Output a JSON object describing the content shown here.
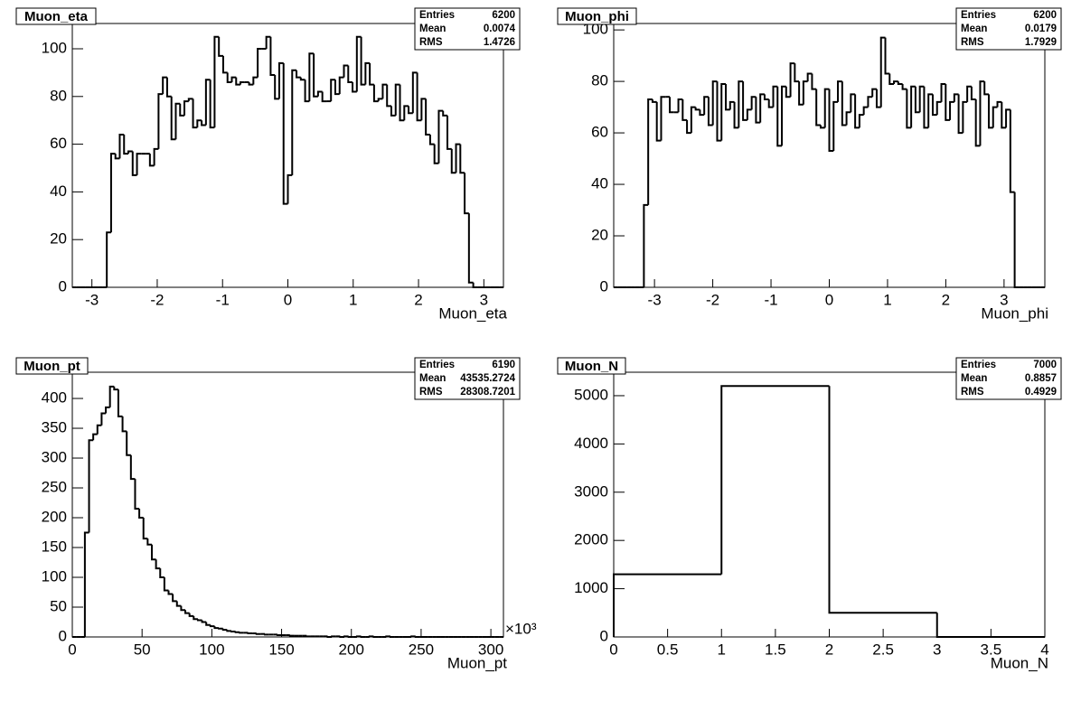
{
  "chart_data": [
    {
      "type": "histogram",
      "title": "Muon_eta",
      "x_label": "Muon_eta",
      "color": "#000000",
      "stats": [
        {
          "label": "Entries",
          "value": 6200
        },
        {
          "label": "Mean",
          "value": 0.0074
        },
        {
          "label": "RMS",
          "value": 1.4726
        }
      ],
      "bins": [
        -3.3,
        -3.234,
        -3.168,
        -3.102,
        -3.036,
        -2.97,
        -2.904,
        -2.838,
        -2.772,
        -2.706,
        -2.64,
        -2.574,
        -2.508,
        -2.442,
        -2.376,
        -2.31,
        -2.244,
        -2.178,
        -2.112,
        -2.046,
        -1.98,
        -1.914,
        -1.848,
        -1.782,
        -1.716,
        -1.65,
        -1.584,
        -1.518,
        -1.452,
        -1.386,
        -1.32,
        -1.254,
        -1.188,
        -1.122,
        -1.056,
        -0.99,
        -0.924,
        -0.858,
        -0.792,
        -0.726,
        -0.66,
        -0.594,
        -0.528,
        -0.462,
        -0.396,
        -0.33,
        -0.264,
        -0.198,
        -0.132,
        -0.066,
        0,
        0.066,
        0.132,
        0.198,
        0.264,
        0.33,
        0.396,
        0.462,
        0.528,
        0.594,
        0.66,
        0.726,
        0.792,
        0.858,
        0.924,
        0.99,
        1.056,
        1.122,
        1.188,
        1.254,
        1.32,
        1.386,
        1.452,
        1.518,
        1.584,
        1.65,
        1.716,
        1.782,
        1.848,
        1.914,
        1.98,
        2.046,
        2.112,
        2.178,
        2.244,
        2.31,
        2.376,
        2.442,
        2.508,
        2.574,
        2.64,
        2.706,
        2.772,
        2.838,
        2.904,
        2.97,
        3.036,
        3.102,
        3.168,
        3.234,
        3.3
      ],
      "values": [
        0,
        0,
        0,
        0,
        0,
        0,
        0,
        0,
        23,
        56,
        54,
        64,
        56,
        57,
        47,
        56,
        56,
        56,
        51,
        58,
        81,
        88,
        80,
        62,
        77,
        72,
        78,
        79,
        67,
        70,
        68,
        87,
        67,
        105,
        97,
        90,
        86,
        88,
        85,
        86,
        86,
        85,
        88,
        100,
        100,
        105,
        89,
        79,
        94,
        35,
        47,
        91,
        88,
        87,
        78,
        98,
        80,
        82,
        78,
        78,
        87,
        81,
        88,
        93,
        86,
        82,
        105,
        85,
        94,
        85,
        78,
        79,
        85,
        76,
        72,
        85,
        70,
        76,
        73,
        90,
        70,
        79,
        64,
        60,
        52,
        74,
        72,
        58,
        48,
        60,
        48,
        31,
        2,
        0,
        0,
        0,
        0,
        0,
        0,
        0
      ],
      "xlim": [
        -3.3,
        3.3
      ],
      "ylim": [
        0,
        110.6
      ],
      "xticks": [
        -3,
        -2,
        -1,
        0,
        1,
        2,
        3
      ],
      "yticks": [
        0,
        20,
        40,
        60,
        80,
        100
      ]
    },
    {
      "type": "histogram",
      "title": "Muon_phi",
      "x_label": "Muon_phi",
      "color": "#000000",
      "stats": [
        {
          "label": "Entries",
          "value": 6200
        },
        {
          "label": "Mean",
          "value": 0.0179
        },
        {
          "label": "RMS",
          "value": 1.7929
        }
      ],
      "bins": [
        -3.7,
        -3.626,
        -3.552,
        -3.478,
        -3.404,
        -3.33,
        -3.256,
        -3.182,
        -3.108,
        -3.034,
        -2.96,
        -2.886,
        -2.812,
        -2.738,
        -2.664,
        -2.59,
        -2.516,
        -2.442,
        -2.368,
        -2.294,
        -2.22,
        -2.146,
        -2.072,
        -1.998,
        -1.924,
        -1.85,
        -1.776,
        -1.702,
        -1.628,
        -1.554,
        -1.48,
        -1.406,
        -1.332,
        -1.258,
        -1.184,
        -1.11,
        -1.036,
        -0.962,
        -0.888,
        -0.814,
        -0.74,
        -0.666,
        -0.592,
        -0.518,
        -0.444,
        -0.37,
        -0.296,
        -0.222,
        -0.148,
        -0.074,
        0,
        0.074,
        0.148,
        0.222,
        0.296,
        0.37,
        0.444,
        0.518,
        0.592,
        0.666,
        0.74,
        0.814,
        0.888,
        0.962,
        1.036,
        1.11,
        1.184,
        1.258,
        1.332,
        1.406,
        1.48,
        1.554,
        1.628,
        1.702,
        1.776,
        1.85,
        1.924,
        1.998,
        2.072,
        2.146,
        2.22,
        2.294,
        2.368,
        2.442,
        2.516,
        2.59,
        2.664,
        2.738,
        2.812,
        2.886,
        2.96,
        3.034,
        3.108,
        3.182,
        3.256,
        3.33,
        3.404,
        3.478,
        3.552,
        3.626,
        3.7
      ],
      "values": [
        0,
        0,
        0,
        0,
        0,
        0,
        0,
        32,
        73,
        72,
        57,
        74,
        74,
        68,
        68,
        73,
        65,
        60,
        70,
        69,
        67,
        74,
        63,
        80,
        57,
        79,
        69,
        72,
        62,
        80,
        65,
        69,
        74,
        64,
        75,
        73,
        70,
        78,
        55,
        78,
        74,
        87,
        80,
        71,
        80,
        83,
        77,
        63,
        62,
        77,
        53,
        72,
        80,
        63,
        68,
        75,
        62,
        67,
        70,
        74,
        77,
        70,
        97,
        83,
        79,
        80,
        79,
        77,
        62,
        78,
        68,
        78,
        62,
        75,
        67,
        72,
        79,
        65,
        72,
        75,
        60,
        72,
        78,
        73,
        55,
        80,
        75,
        62,
        70,
        72,
        62,
        69,
        37,
        0,
        0,
        0,
        0,
        0,
        0,
        0
      ],
      "xlim": [
        -3.7,
        3.7
      ],
      "ylim": [
        0,
        102.5
      ],
      "xticks": [
        -3,
        -2,
        -1,
        0,
        1,
        2,
        3
      ],
      "yticks": [
        0,
        20,
        40,
        60,
        80,
        100
      ]
    },
    {
      "type": "histogram",
      "title": "Muon_pt",
      "x_label": "Muon_pt",
      "x_exponent_label": "×10³",
      "color": "#000000",
      "stats": [
        {
          "label": "Entries",
          "value": 6190
        },
        {
          "label": "Mean",
          "value": 43535.2724
        },
        {
          "label": "RMS",
          "value": 28308.7201
        }
      ],
      "bins": [
        0,
        3000,
        6000,
        9000,
        12000,
        15000,
        18000,
        21000,
        24000,
        27000,
        30000,
        33000,
        36000,
        39000,
        42000,
        45000,
        48000,
        51000,
        54000,
        57000,
        60000,
        63000,
        66000,
        69000,
        72000,
        75000,
        78000,
        81000,
        84000,
        87000,
        90000,
        93000,
        96000,
        99000,
        102000,
        105000,
        108000,
        111000,
        114000,
        117000,
        120000,
        123000,
        126000,
        129000,
        132000,
        135000,
        138000,
        141000,
        144000,
        147000,
        150000,
        153000,
        156000,
        159000,
        162000,
        165000,
        168000,
        171000,
        174000,
        177000,
        180000,
        183000,
        186000,
        189000,
        192000,
        195000,
        198000,
        201000,
        204000,
        207000,
        210000,
        213000,
        216000,
        219000,
        222000,
        225000,
        228000,
        231000,
        234000,
        237000,
        240000,
        243000,
        246000,
        249000,
        252000,
        255000,
        258000,
        261000,
        264000,
        267000,
        270000,
        273000,
        276000,
        279000,
        282000,
        285000,
        288000,
        291000,
        294000,
        297000,
        300000,
        303000,
        306000,
        309000
      ],
      "values": [
        0,
        0,
        0,
        175,
        330,
        340,
        355,
        375,
        385,
        420,
        415,
        370,
        345,
        305,
        265,
        215,
        200,
        165,
        155,
        130,
        115,
        100,
        78,
        72,
        60,
        52,
        45,
        40,
        35,
        30,
        28,
        25,
        20,
        18,
        15,
        14,
        12,
        10,
        9,
        8,
        7,
        7,
        6,
        6,
        5,
        5,
        4,
        4,
        4,
        3,
        3,
        3,
        2,
        2,
        2,
        2,
        1,
        1,
        1,
        1,
        1,
        0,
        1,
        1,
        0,
        1,
        0,
        0,
        1,
        0,
        0,
        1,
        0,
        0,
        0,
        1,
        0,
        0,
        0,
        0,
        0,
        1,
        0,
        0,
        0,
        0,
        0,
        0,
        0,
        0,
        0,
        0,
        0,
        0,
        0,
        0,
        0,
        0,
        0,
        0,
        0,
        0,
        0
      ],
      "xlim": [
        0,
        309000
      ],
      "ylim": [
        0,
        444
      ],
      "xticks": [
        {
          "value": 0,
          "label": "0"
        },
        {
          "value": 50000,
          "label": "50"
        },
        {
          "value": 100000,
          "label": "100"
        },
        {
          "value": 150000,
          "label": "150"
        },
        {
          "value": 200000,
          "label": "200"
        },
        {
          "value": 250000,
          "label": "250"
        },
        {
          "value": 300000,
          "label": "300"
        }
      ],
      "yticks": [
        0,
        50,
        100,
        150,
        200,
        250,
        300,
        350,
        400
      ]
    },
    {
      "type": "histogram",
      "title": "Muon_N",
      "x_label": "Muon_N",
      "color": "#000000",
      "stats": [
        {
          "label": "Entries",
          "value": 7000
        },
        {
          "label": "Mean",
          "value": 0.8857
        },
        {
          "label": "RMS",
          "value": 0.4929
        }
      ],
      "bins": [
        0,
        1,
        2,
        3,
        4
      ],
      "values": [
        1300,
        5200,
        500,
        0
      ],
      "xlim": [
        0,
        4
      ],
      "ylim": [
        0,
        5486
      ],
      "xticks": [
        0,
        0.5,
        1,
        1.5,
        2,
        2.5,
        3,
        3.5,
        4
      ],
      "yticks": [
        0,
        1000,
        2000,
        3000,
        4000,
        5000
      ]
    }
  ]
}
